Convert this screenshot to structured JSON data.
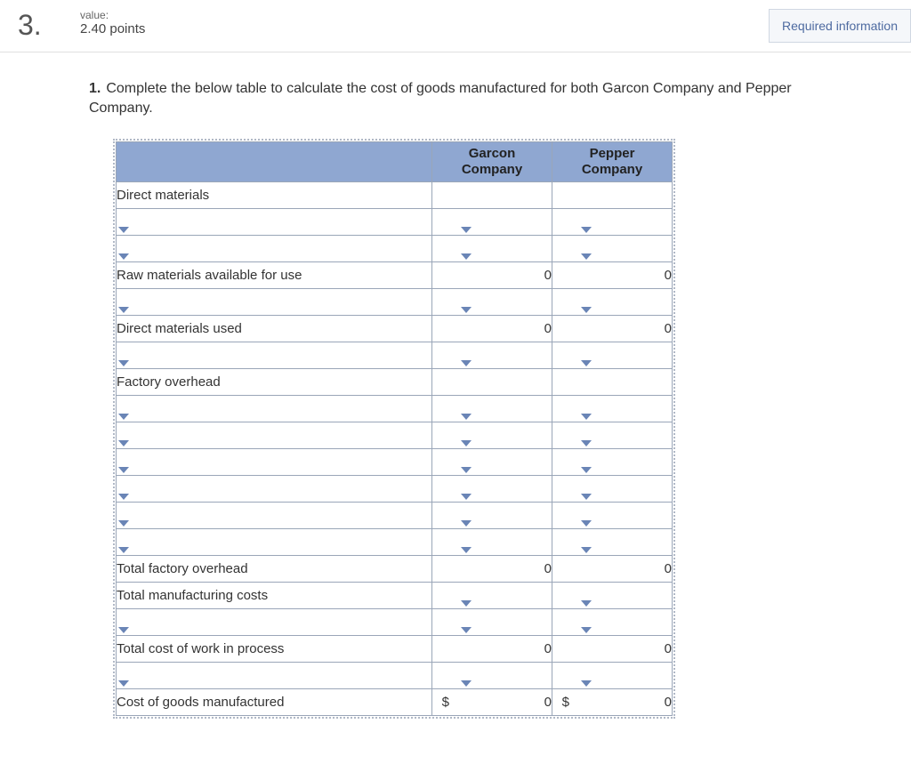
{
  "header": {
    "question_number": "3.",
    "value_label": "value:",
    "value_points": "2.40 points",
    "required_info_label": "Required information"
  },
  "instruction": {
    "number": "1.",
    "text": "Complete the below table to calculate the cost of goods manufactured for both Garcon Company and Pepper Company."
  },
  "table": {
    "header_col1": "Garcon Company",
    "header_col2": "Pepper Company",
    "header_color": "#8fa7d1",
    "border_color": "#9aa6b8",
    "arrow_color": "#6a85b6",
    "col_widths": {
      "label": 355,
      "sym": 30,
      "val": 105
    },
    "rows": [
      {
        "label": "Direct materials",
        "indent": false,
        "editable_label": false,
        "garcon": {
          "sym": "",
          "val": "",
          "editable": false
        },
        "pepper": {
          "sym": "",
          "val": "",
          "editable": false
        }
      },
      {
        "label": "",
        "indent": true,
        "editable_label": true,
        "garcon": {
          "sym": "",
          "val": "",
          "editable": true
        },
        "pepper": {
          "sym": "",
          "val": "",
          "editable": true
        }
      },
      {
        "label": "",
        "indent": true,
        "editable_label": true,
        "garcon": {
          "sym": "",
          "val": "",
          "editable": true
        },
        "pepper": {
          "sym": "",
          "val": "",
          "editable": true
        }
      },
      {
        "label": "Raw materials available for use",
        "indent": true,
        "editable_label": false,
        "garcon": {
          "sym": "",
          "val": "0",
          "editable": false
        },
        "pepper": {
          "sym": "",
          "val": "0",
          "editable": false
        }
      },
      {
        "label": "",
        "indent": true,
        "editable_label": true,
        "garcon": {
          "sym": "",
          "val": "",
          "editable": true
        },
        "pepper": {
          "sym": "",
          "val": "",
          "editable": true
        }
      },
      {
        "label": "Direct materials used",
        "indent": true,
        "editable_label": false,
        "garcon": {
          "sym": "",
          "val": "0",
          "editable": false
        },
        "pepper": {
          "sym": "",
          "val": "0",
          "editable": false
        }
      },
      {
        "label": "",
        "indent": false,
        "editable_label": true,
        "garcon": {
          "sym": "",
          "val": "",
          "editable": true
        },
        "pepper": {
          "sym": "",
          "val": "",
          "editable": true
        }
      },
      {
        "label": "Factory overhead",
        "indent": false,
        "editable_label": false,
        "garcon": {
          "sym": "",
          "val": "",
          "editable": false
        },
        "pepper": {
          "sym": "",
          "val": "",
          "editable": false
        }
      },
      {
        "label": "",
        "indent": true,
        "editable_label": true,
        "garcon": {
          "sym": "",
          "val": "",
          "editable": true
        },
        "pepper": {
          "sym": "",
          "val": "",
          "editable": true
        }
      },
      {
        "label": "",
        "indent": true,
        "editable_label": true,
        "garcon": {
          "sym": "",
          "val": "",
          "editable": true
        },
        "pepper": {
          "sym": "",
          "val": "",
          "editable": true
        }
      },
      {
        "label": "",
        "indent": true,
        "editable_label": true,
        "garcon": {
          "sym": "",
          "val": "",
          "editable": true
        },
        "pepper": {
          "sym": "",
          "val": "",
          "editable": true
        }
      },
      {
        "label": "",
        "indent": true,
        "editable_label": true,
        "garcon": {
          "sym": "",
          "val": "",
          "editable": true
        },
        "pepper": {
          "sym": "",
          "val": "",
          "editable": true
        }
      },
      {
        "label": "",
        "indent": true,
        "editable_label": true,
        "garcon": {
          "sym": "",
          "val": "",
          "editable": true
        },
        "pepper": {
          "sym": "",
          "val": "",
          "editable": true
        }
      },
      {
        "label": "",
        "indent": true,
        "editable_label": true,
        "garcon": {
          "sym": "",
          "val": "",
          "editable": true
        },
        "pepper": {
          "sym": "",
          "val": "",
          "editable": true
        }
      },
      {
        "label": "Total factory overhead",
        "indent": true,
        "editable_label": false,
        "garcon": {
          "sym": "",
          "val": "0",
          "editable": false
        },
        "pepper": {
          "sym": "",
          "val": "0",
          "editable": false
        }
      },
      {
        "label": "Total manufacturing costs",
        "indent": false,
        "editable_label": false,
        "garcon": {
          "sym": "",
          "val": "",
          "editable": true
        },
        "pepper": {
          "sym": "",
          "val": "",
          "editable": true
        }
      },
      {
        "label": "",
        "indent": false,
        "editable_label": true,
        "garcon": {
          "sym": "",
          "val": "",
          "editable": true
        },
        "pepper": {
          "sym": "",
          "val": "",
          "editable": true
        }
      },
      {
        "label": "Total cost of work in process",
        "indent": false,
        "editable_label": false,
        "garcon": {
          "sym": "",
          "val": "0",
          "editable": false
        },
        "pepper": {
          "sym": "",
          "val": "0",
          "editable": false
        }
      },
      {
        "label": "",
        "indent": false,
        "editable_label": true,
        "garcon": {
          "sym": "",
          "val": "",
          "editable": true
        },
        "pepper": {
          "sym": "",
          "val": "",
          "editable": true
        }
      },
      {
        "label": "Cost of goods manufactured",
        "indent": false,
        "editable_label": false,
        "garcon": {
          "sym": "$",
          "val": "0",
          "editable": false
        },
        "pepper": {
          "sym": "$",
          "val": "0",
          "editable": false
        }
      }
    ]
  }
}
